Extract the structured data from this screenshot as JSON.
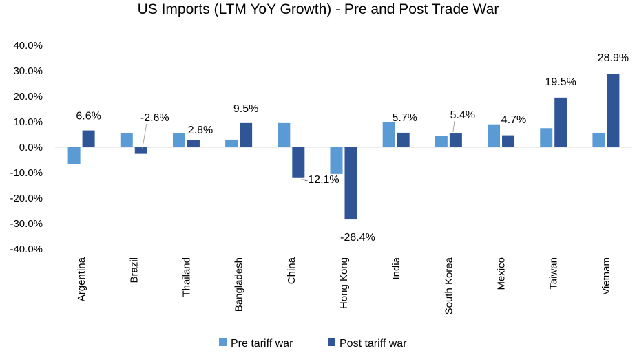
{
  "chart_data": {
    "type": "bar",
    "title": "US Imports (LTM YoY Growth) - Pre and Post Trade War",
    "categories": [
      "Argentina",
      "Brazil",
      "Thailand",
      "Bangladesh",
      "China",
      "Hong Kong",
      "India",
      "South Korea",
      "Mexico",
      "Taiwan",
      "Vietnam"
    ],
    "series": [
      {
        "name": "Pre tariff war",
        "color": "#5B9BD5",
        "values": [
          -6.5,
          5.5,
          5.5,
          3.0,
          9.5,
          -10.5,
          10.0,
          4.5,
          9.0,
          7.5,
          5.5
        ]
      },
      {
        "name": "Post tariff war",
        "color": "#2F5597",
        "values": [
          6.6,
          -2.6,
          2.8,
          9.5,
          -12.1,
          -28.4,
          5.7,
          5.4,
          4.7,
          19.5,
          28.9
        ]
      }
    ],
    "data_labels": [
      "6.6%",
      "-2.6%",
      "2.8%",
      "9.5%",
      "-12.1%",
      "-28.4%",
      "5.7%",
      "5.4%",
      "4.7%",
      "19.5%",
      "28.9%"
    ],
    "yticks": [
      "40.0%",
      "30.0%",
      "20.0%",
      "10.0%",
      "0.0%",
      "-10.0%",
      "-20.0%",
      "-30.0%",
      "-40.0%"
    ],
    "ylim": [
      -40,
      40
    ],
    "ytick_step": 10,
    "grid": false,
    "legend_position": "bottom",
    "xlabel": "",
    "ylabel": ""
  }
}
